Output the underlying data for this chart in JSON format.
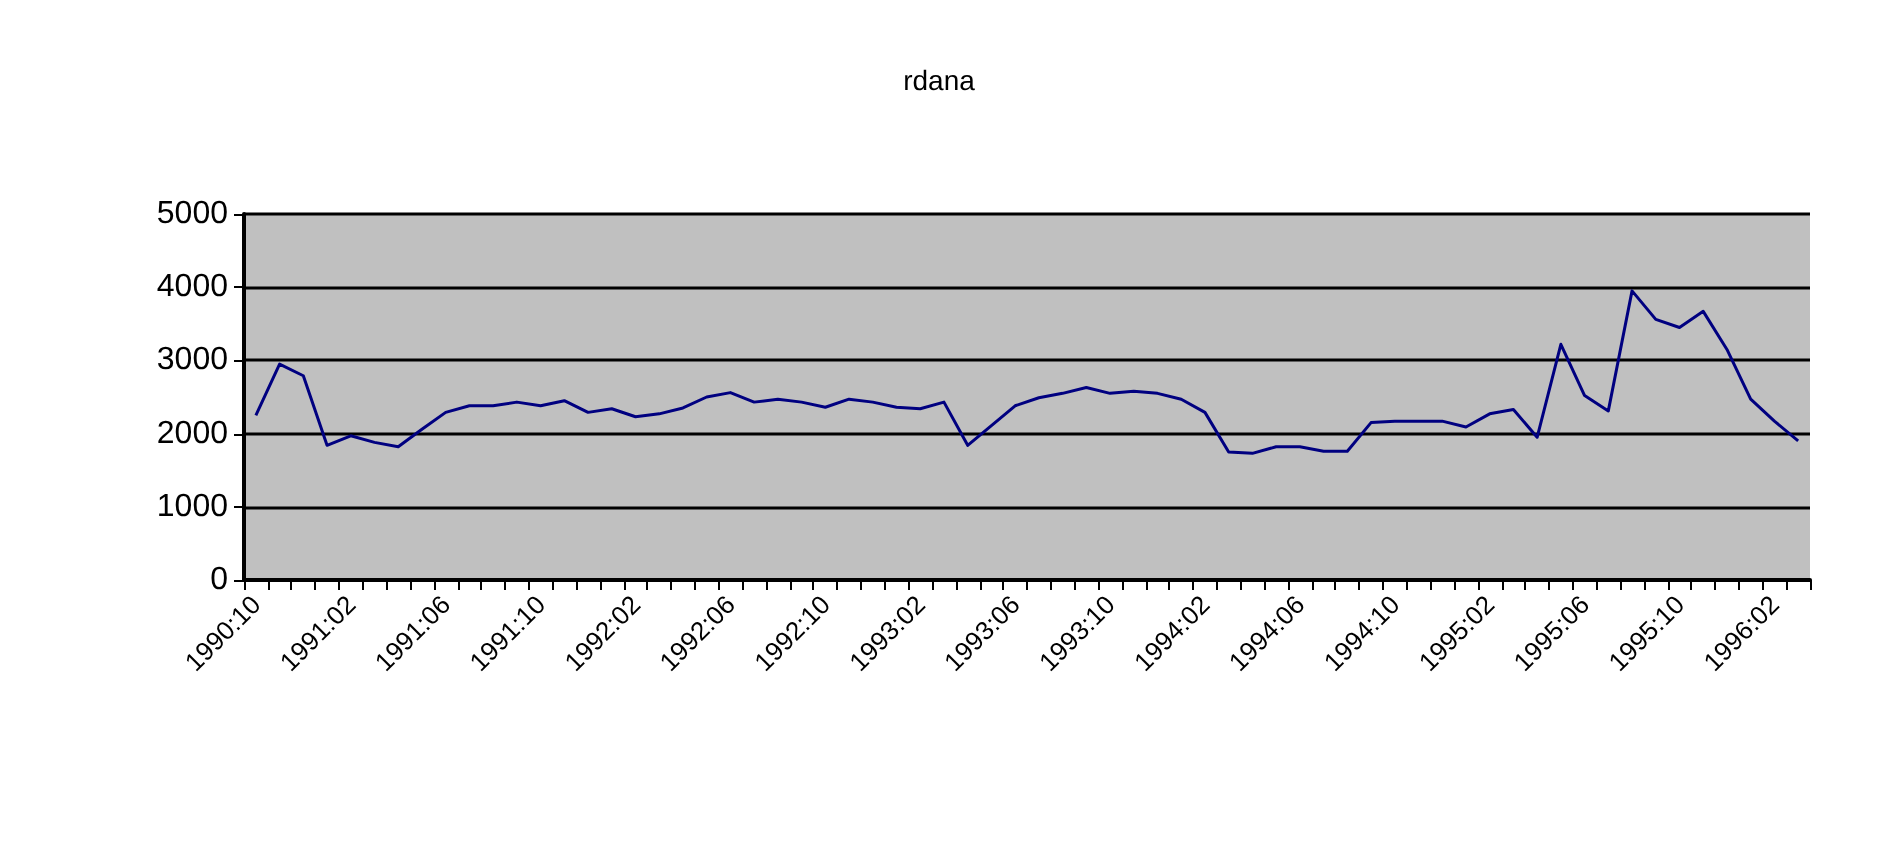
{
  "chart_data": {
    "type": "line",
    "title": "rdana",
    "categories": [
      "1990:10",
      null,
      null,
      null,
      "1991:02",
      null,
      null,
      null,
      "1991:06",
      null,
      null,
      null,
      "1991:10",
      null,
      null,
      null,
      "1992:02",
      null,
      null,
      null,
      "1992:06",
      null,
      null,
      null,
      "1992:10",
      null,
      null,
      null,
      "1993:02",
      null,
      null,
      null,
      "1993:06",
      null,
      null,
      null,
      "1993:10",
      null,
      null,
      null,
      "1994:02",
      null,
      null,
      null,
      "1994:06",
      null,
      null,
      null,
      "1994:10",
      null,
      null,
      null,
      "1995:02",
      null,
      null,
      null,
      "1995:06",
      null,
      null,
      null,
      "1995:10",
      null,
      null,
      null,
      "1996:02",
      null
    ],
    "series": [
      {
        "color": "#000080",
        "values": [
          2250,
          2950,
          2790,
          1840,
          1970,
          1880,
          1820,
          2060,
          2290,
          2380,
          2380,
          2430,
          2380,
          2450,
          2290,
          2340,
          2230,
          2270,
          2350,
          2500,
          2560,
          2430,
          2470,
          2430,
          2360,
          2470,
          2430,
          2360,
          2340,
          2430,
          1840,
          2110,
          2380,
          2490,
          2550,
          2630,
          2550,
          2580,
          2550,
          2470,
          2290,
          1750,
          1730,
          1820,
          1820,
          1760,
          1760,
          2150,
          2170,
          2170,
          2170,
          2090,
          2270,
          2330,
          1950,
          3220,
          2520,
          2310,
          3950,
          3560,
          3450,
          3670,
          3150,
          2470,
          2170,
          1900
        ]
      }
    ],
    "ylim": [
      0,
      5000
    ],
    "yticks": [
      0,
      1000,
      2000,
      3000,
      4000,
      5000
    ],
    "grid": "y",
    "marker": "none",
    "line_style": "solid"
  }
}
